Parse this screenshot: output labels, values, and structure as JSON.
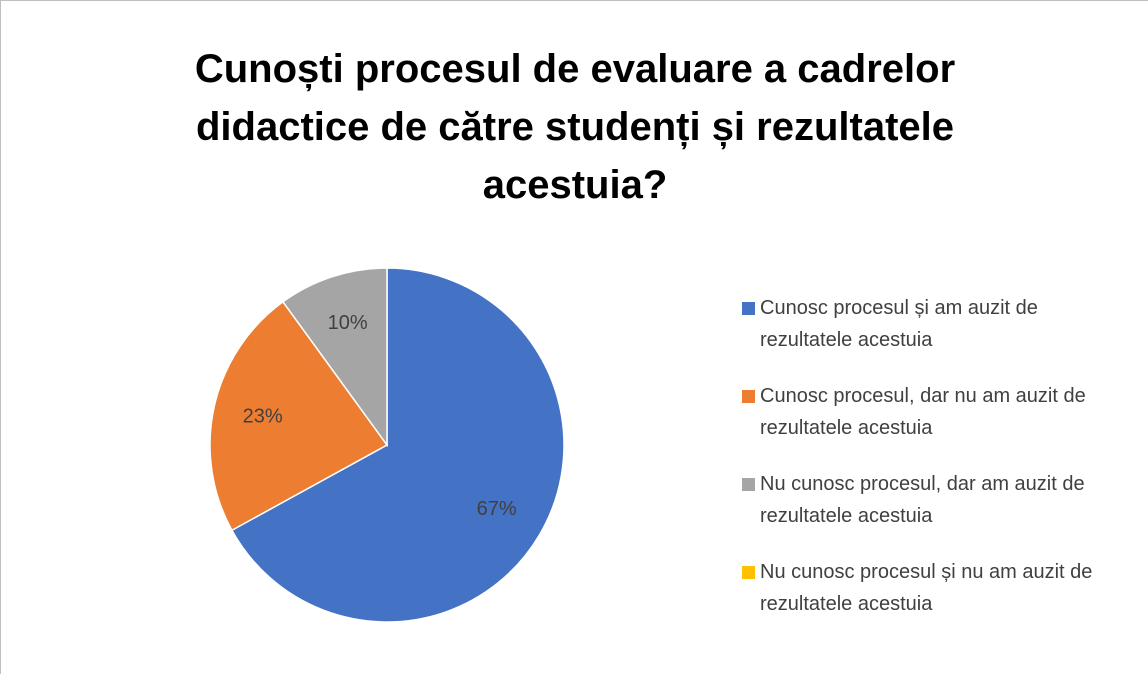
{
  "chart_data": {
    "type": "pie",
    "title": "Cunoști procesul de evaluare a cadrelor didactice de către studenți și rezultatele acestuia?",
    "categories": [
      "Cunosc procesul și am auzit de rezultatele acestuia",
      "Cunosc procesul, dar nu am auzit de rezultatele acestuia",
      "Nu cunosc procesul, dar am auzit de rezultatele acestuia",
      "Nu cunosc procesul și nu am auzit de rezultatele acestuia"
    ],
    "values": [
      67,
      23,
      10,
      0
    ],
    "value_labels": [
      "67%",
      "23%",
      "10%",
      null
    ],
    "colors": [
      "#4472c4",
      "#ed7d31",
      "#a5a5a5",
      "#ffc000"
    ],
    "legend": "right"
  }
}
